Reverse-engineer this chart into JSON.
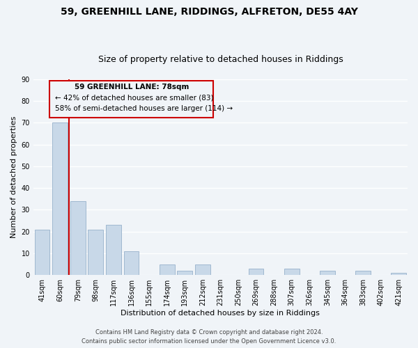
{
  "title": "59, GREENHILL LANE, RIDDINGS, ALFRETON, DE55 4AY",
  "subtitle": "Size of property relative to detached houses in Riddings",
  "xlabel": "Distribution of detached houses by size in Riddings",
  "ylabel": "Number of detached properties",
  "bar_labels": [
    "41sqm",
    "60sqm",
    "79sqm",
    "98sqm",
    "117sqm",
    "136sqm",
    "155sqm",
    "174sqm",
    "193sqm",
    "212sqm",
    "231sqm",
    "250sqm",
    "269sqm",
    "288sqm",
    "307sqm",
    "326sqm",
    "345sqm",
    "364sqm",
    "383sqm",
    "402sqm",
    "421sqm"
  ],
  "bar_values": [
    21,
    70,
    34,
    21,
    23,
    11,
    0,
    5,
    2,
    5,
    0,
    0,
    3,
    0,
    3,
    0,
    2,
    0,
    2,
    0,
    1
  ],
  "bar_color": "#c8d8e8",
  "bar_edge_color": "#a0b8d0",
  "property_label": "59 GREENHILL LANE: 78sqm",
  "annotation_smaller": "← 42% of detached houses are smaller (83)",
  "annotation_larger": "58% of semi-detached houses are larger (114) →",
  "vline_color": "#cc0000",
  "box_edge_color": "#cc0000",
  "ylim": [
    0,
    90
  ],
  "yticks": [
    0,
    10,
    20,
    30,
    40,
    50,
    60,
    70,
    80,
    90
  ],
  "footer_line1": "Contains HM Land Registry data © Crown copyright and database right 2024.",
  "footer_line2": "Contains public sector information licensed under the Open Government Licence v3.0.",
  "bg_color": "#f0f4f8",
  "grid_color": "#ffffff",
  "title_fontsize": 10,
  "subtitle_fontsize": 9,
  "label_fontsize": 8,
  "tick_fontsize": 7,
  "footer_fontsize": 6,
  "annot_fontsize": 7.5
}
